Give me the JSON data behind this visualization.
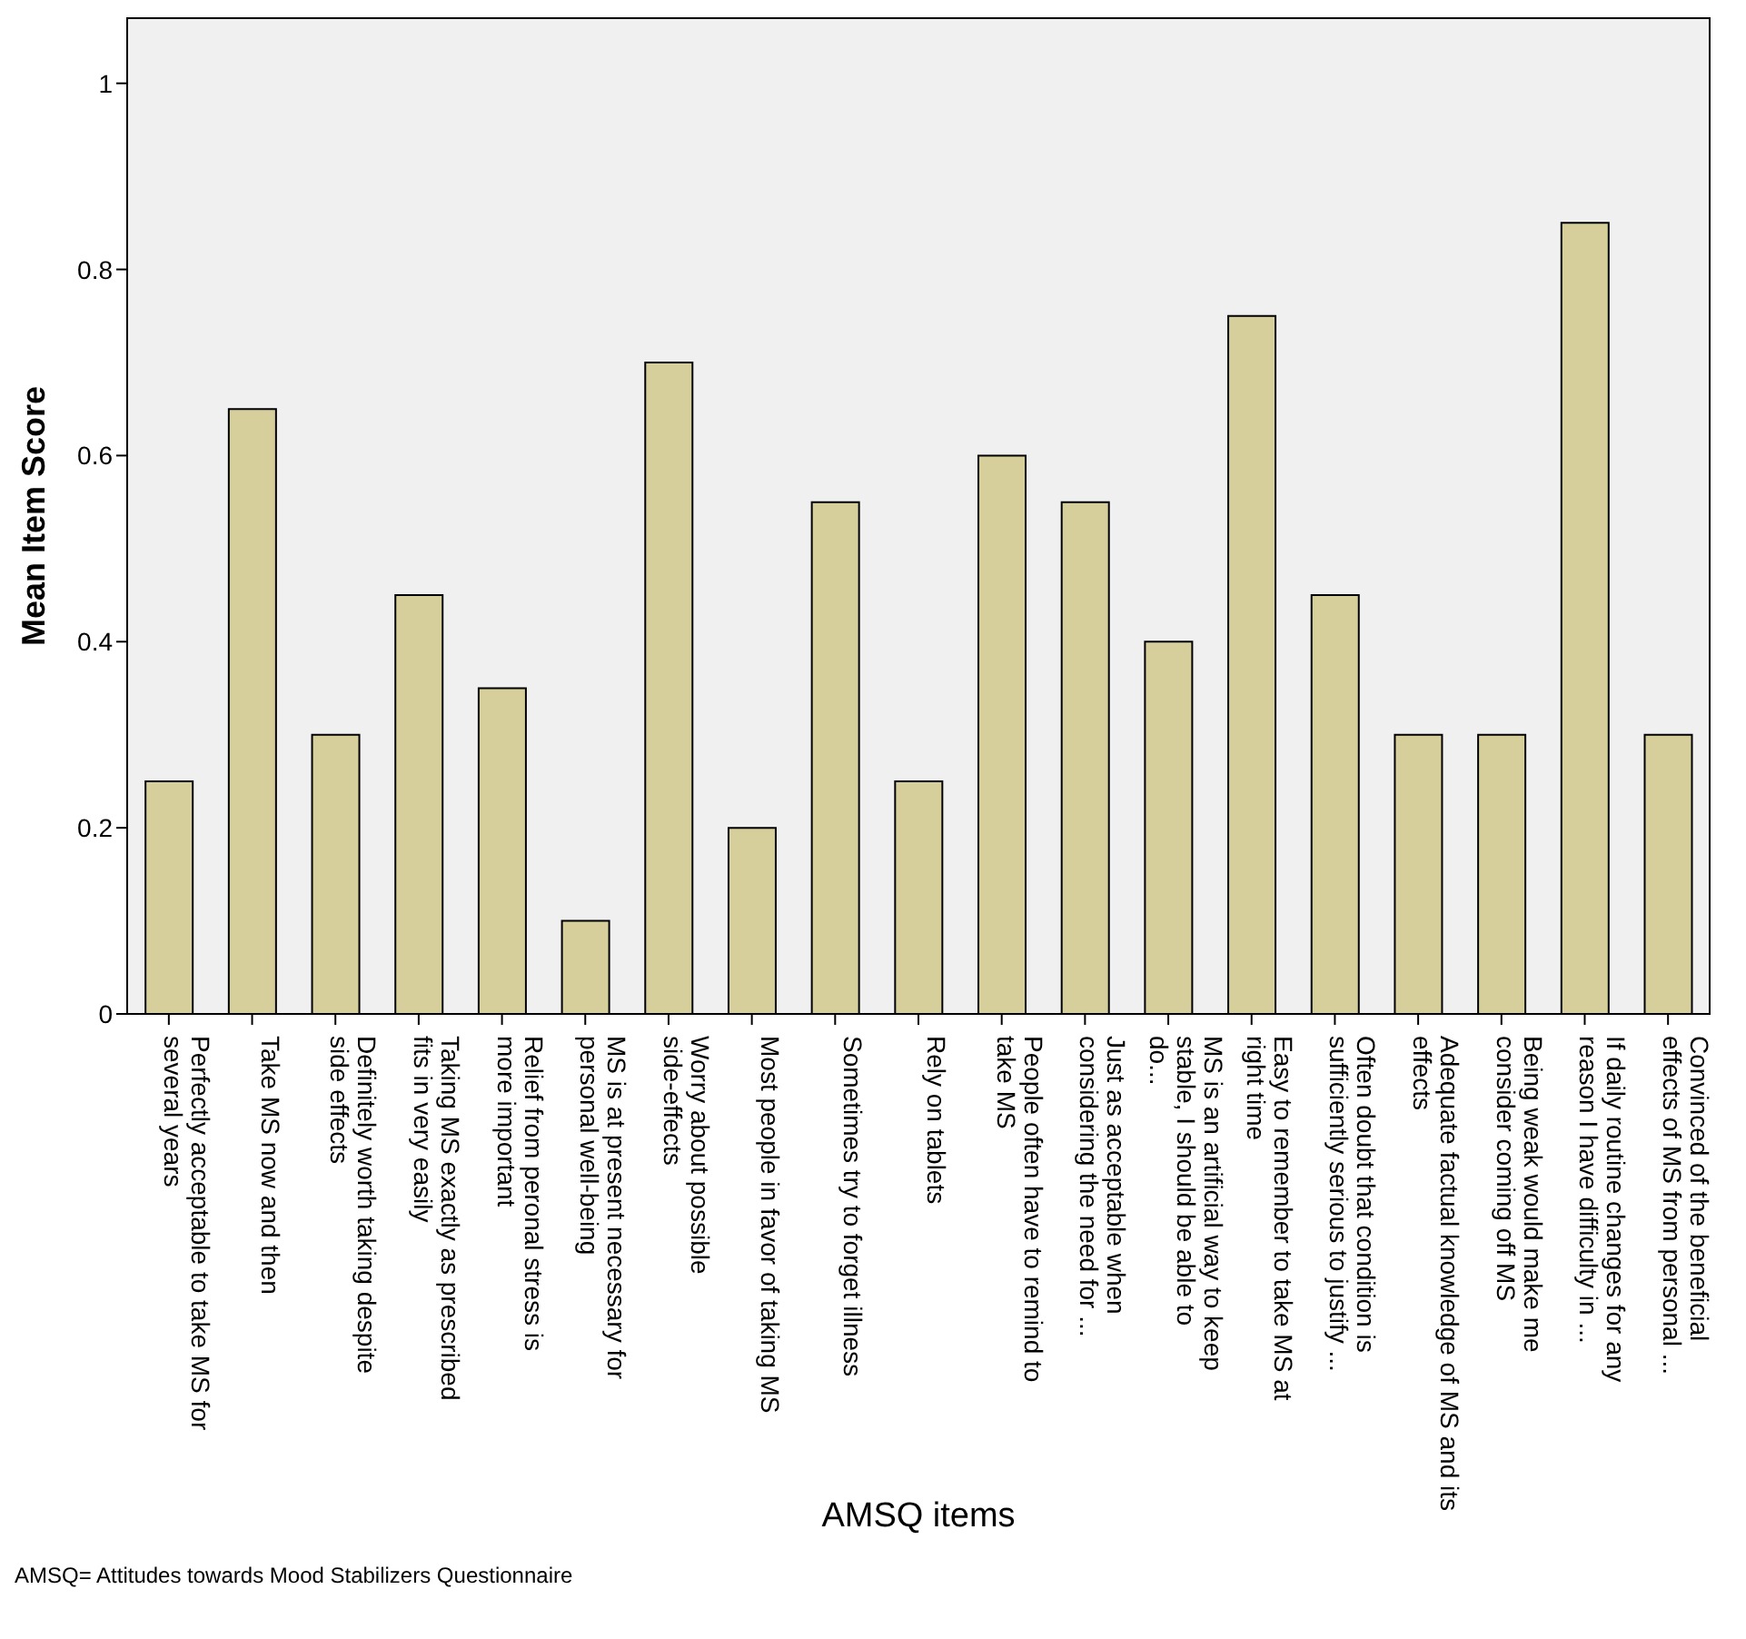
{
  "chart_data": {
    "type": "bar",
    "xlabel": "AMSQ items",
    "ylabel": "Mean Item Score",
    "categories": [
      "Perfectly acceptable to take MS for several years",
      "Take MS now and then",
      "Definitely worth taking despite side effects",
      "Taking MS exactly as prescribed fits in very easily",
      "Relief from peronal stress is more important",
      "MS is at present necessary for personal well-being",
      "Worry about possible side-effects",
      "Most people in favor of taking MS",
      "Sometimes try to forget illness",
      "Rely on tablets",
      "People often have to remind to take MS",
      "Just as acceptable when considering the need for ...",
      "MS is an artificial way to keep stable, I should be able to do...",
      "Easy to remember to take MS at right time",
      "Often doubt that condition is sufficiently serious to justify ...",
      "Adequate factual knowledge of MS and its effects",
      "Being weak would make me consider coming off MS",
      "If daily routine changes for any reason I have difficulty in ...",
      "Convinced of the beneficial effects of MS from personal ..."
    ],
    "values": [
      0.25,
      0.65,
      0.3,
      0.45,
      0.35,
      0.1,
      0.7,
      0.2,
      0.55,
      0.25,
      0.6,
      0.55,
      0.4,
      0.75,
      0.45,
      0.3,
      0.3,
      0.85,
      0.3
    ],
    "color": "#d6cf9c",
    "ylim": [
      0,
      1.07
    ],
    "yticks": [
      0,
      0.2,
      0.4,
      0.6,
      0.8,
      1
    ],
    "annotations": [
      "AMSQ= Attitudes towards Mood Stabilizers Questionnaire"
    ]
  }
}
